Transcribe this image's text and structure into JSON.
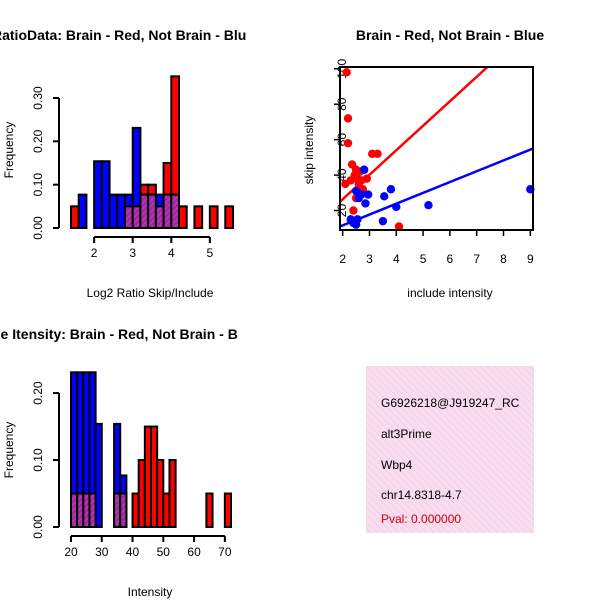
{
  "chart_data": [
    {
      "type": "bar",
      "subtype": "overlaid-histogram",
      "title": "RatioData: Brain - Red, Not Brain - Blu",
      "xlabel": "Log2 Ratio Skip/Include",
      "ylabel": "Frequency",
      "xlim": [
        1.4,
        5.6
      ],
      "ylim": [
        0,
        0.36
      ],
      "xticks": [
        "2",
        "3",
        "4",
        "5"
      ],
      "yticks": [
        "0.00",
        "0.10",
        "0.20",
        "0.30"
      ],
      "bin_width": 0.2,
      "series": [
        {
          "name": "Brain",
          "color": "#ff0000",
          "bins": [
            [
              1.4,
              0.05
            ],
            [
              1.6,
              0
            ],
            [
              1.8,
              0
            ],
            [
              2.0,
              0
            ],
            [
              2.2,
              0
            ],
            [
              2.4,
              0
            ],
            [
              2.6,
              0
            ],
            [
              2.8,
              0.05
            ],
            [
              3.0,
              0.05
            ],
            [
              3.2,
              0.1
            ],
            [
              3.4,
              0.1
            ],
            [
              3.6,
              0.05
            ],
            [
              3.8,
              0.15
            ],
            [
              4.0,
              0.35
            ],
            [
              4.2,
              0.05
            ],
            [
              4.4,
              0
            ],
            [
              4.6,
              0.05
            ],
            [
              4.8,
              0
            ],
            [
              5.0,
              0.05
            ],
            [
              5.2,
              0
            ],
            [
              5.4,
              0.05
            ]
          ]
        },
        {
          "name": "Not Brain",
          "color": "#0000ff",
          "bins": [
            [
              1.6,
              0.077
            ],
            [
              1.8,
              0
            ],
            [
              2.0,
              0.154
            ],
            [
              2.2,
              0.154
            ],
            [
              2.4,
              0.077
            ],
            [
              2.6,
              0.077
            ],
            [
              2.8,
              0.077
            ],
            [
              3.0,
              0.231
            ],
            [
              3.2,
              0.077
            ],
            [
              3.4,
              0.077
            ],
            [
              3.6,
              0.077
            ],
            [
              3.8,
              0.077
            ],
            [
              4.0,
              0.077
            ]
          ]
        }
      ]
    },
    {
      "type": "scatter",
      "title": "Brain - Red, Not Brain - Blue",
      "xlabel": "include intensity",
      "ylabel": "skip intensity",
      "xlim": [
        1.9,
        9.1
      ],
      "ylim": [
        9,
        101
      ],
      "xticks": [
        "2",
        "3",
        "4",
        "5",
        "6",
        "7",
        "8",
        "9"
      ],
      "yticks": [
        "20",
        "40",
        "60",
        "80",
        "100"
      ],
      "series": [
        {
          "name": "Brain",
          "color": "#ff0000",
          "points": [
            [
              2.15,
              98
            ],
            [
              2.2,
              72
            ],
            [
              2.2,
              58
            ],
            [
              2.1,
              35
            ],
            [
              2.3,
              37
            ],
            [
              2.35,
              46
            ],
            [
              2.45,
              40
            ],
            [
              2.5,
              43
            ],
            [
              2.55,
              38
            ],
            [
              2.6,
              35
            ],
            [
              2.65,
              42
            ],
            [
              2.7,
              37
            ],
            [
              2.75,
              32
            ],
            [
              2.8,
              43
            ],
            [
              2.9,
              38
            ],
            [
              3.1,
              52
            ],
            [
              3.3,
              52
            ],
            [
              2.4,
              20
            ],
            [
              4.1,
              11
            ],
            [
              2.5,
              27
            ]
          ],
          "fit_line": [
            [
              1.9,
              25
            ],
            [
              7.4,
              101
            ]
          ]
        },
        {
          "name": "Not Brain",
          "color": "#0000ff",
          "points": [
            [
              2.3,
              15
            ],
            [
              2.4,
              13
            ],
            [
              2.5,
              12
            ],
            [
              2.55,
              15
            ],
            [
              2.5,
              31
            ],
            [
              2.6,
              27
            ],
            [
              2.7,
              29
            ],
            [
              2.8,
              43
            ],
            [
              2.85,
              24
            ],
            [
              2.95,
              29
            ],
            [
              3.5,
              14
            ],
            [
              3.55,
              28
            ],
            [
              3.8,
              32
            ],
            [
              4.0,
              22
            ],
            [
              5.2,
              23
            ],
            [
              9.0,
              32
            ]
          ],
          "fit_line": [
            [
              1.9,
              11
            ],
            [
              9.1,
              55
            ]
          ]
        }
      ]
    },
    {
      "type": "bar",
      "subtype": "overlaid-histogram",
      "title": "ne Itensity: Brain - Red, Not Brain - B",
      "xlabel": "Intensity",
      "ylabel": "Frequency",
      "xlim": [
        20,
        72
      ],
      "ylim": [
        0,
        0.23
      ],
      "xticks": [
        "20",
        "30",
        "40",
        "50",
        "60",
        "70"
      ],
      "yticks": [
        "0.00",
        "0.10",
        "0.20"
      ],
      "bin_width": 2,
      "series": [
        {
          "name": "Brain",
          "color": "#ff0000",
          "bins": [
            [
              20,
              0.05
            ],
            [
              22,
              0.05
            ],
            [
              24,
              0.05
            ],
            [
              26,
              0.05
            ],
            [
              28,
              0
            ],
            [
              30,
              0
            ],
            [
              32,
              0
            ],
            [
              34,
              0.05
            ],
            [
              36,
              0.05
            ],
            [
              38,
              0
            ],
            [
              40,
              0.05
            ],
            [
              42,
              0.1
            ],
            [
              44,
              0.15
            ],
            [
              46,
              0.15
            ],
            [
              48,
              0.1
            ],
            [
              50,
              0.05
            ],
            [
              52,
              0.1
            ],
            [
              54,
              0
            ],
            [
              56,
              0
            ],
            [
              58,
              0
            ],
            [
              60,
              0
            ],
            [
              62,
              0
            ],
            [
              64,
              0.05
            ],
            [
              66,
              0
            ],
            [
              68,
              0
            ],
            [
              70,
              0.05
            ]
          ]
        },
        {
          "name": "Not Brain",
          "color": "#0000ff",
          "bins": [
            [
              20,
              0.231
            ],
            [
              22,
              0.231
            ],
            [
              24,
              0.231
            ],
            [
              26,
              0.231
            ],
            [
              28,
              0.154
            ],
            [
              30,
              0
            ],
            [
              32,
              0
            ],
            [
              34,
              0.154
            ],
            [
              36,
              0.077
            ],
            [
              38,
              0
            ]
          ]
        }
      ]
    }
  ],
  "info_panel": {
    "id": "G6926218@J919247_RC",
    "event_type": "alt3Prime",
    "gene": "Wbp4",
    "location": "chr14.8318-4.7",
    "pval": "Pval: 0.000000"
  }
}
